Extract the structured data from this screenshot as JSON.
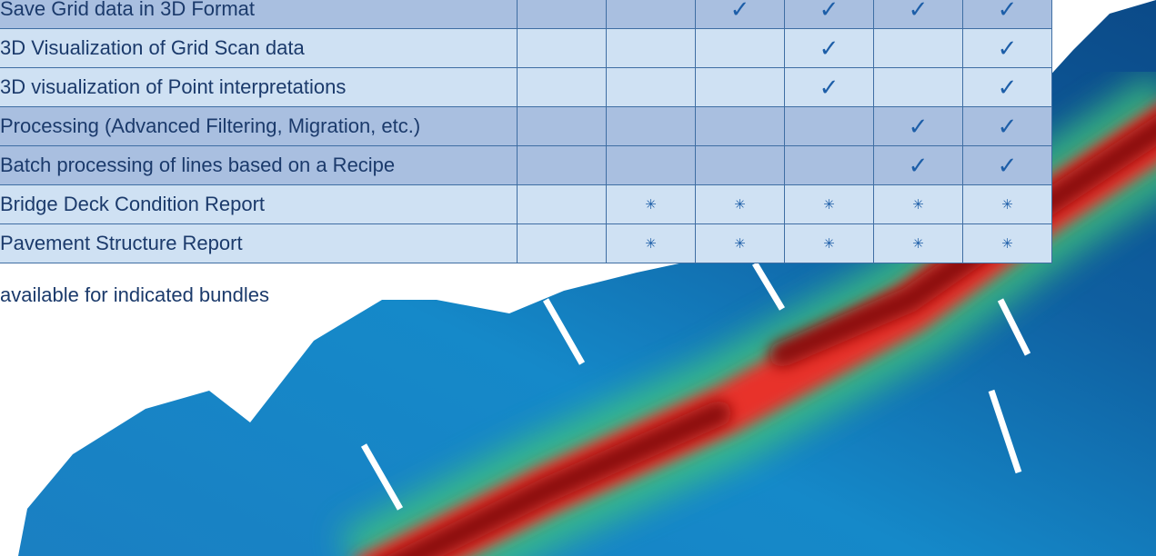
{
  "table": {
    "rows": [
      {
        "label": "Save Grid data in 3D Format",
        "cells": [
          null,
          null,
          "✓",
          "✓",
          "✓",
          "✓"
        ]
      },
      {
        "label": "3D Visualization of Grid Scan data",
        "cells": [
          null,
          null,
          null,
          "✓",
          null,
          "✓"
        ]
      },
      {
        "label": "3D visualization of Point interpretations",
        "cells": [
          null,
          null,
          null,
          "✓",
          null,
          "✓"
        ]
      },
      {
        "label": "Processing (Advanced Filtering, Migration, etc.)",
        "cells": [
          null,
          null,
          null,
          null,
          "✓",
          "✓"
        ]
      },
      {
        "label": "Batch processing of lines based on a Recipe",
        "cells": [
          null,
          null,
          null,
          null,
          "✓",
          "✓"
        ]
      },
      {
        "label": "Bridge Deck Condition Report",
        "cells": [
          null,
          "✳",
          "✳",
          "✳",
          "✳",
          "✳"
        ]
      },
      {
        "label": "Pavement Structure Report",
        "cells": [
          null,
          "✳",
          "✳",
          "✳",
          "✳",
          "✳"
        ]
      }
    ]
  },
  "footnote": "available for indicated bundles"
}
